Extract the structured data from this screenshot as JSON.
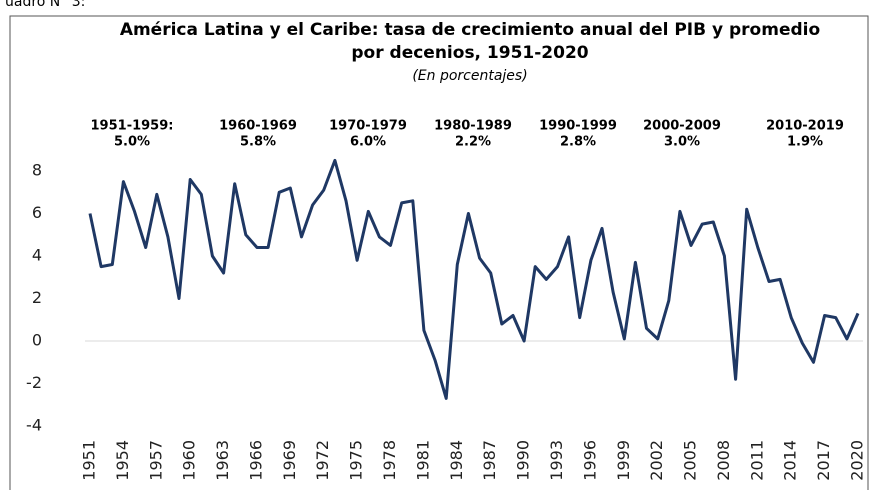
{
  "caption": "uadro N° 3:",
  "chart_data": {
    "type": "line",
    "title": [
      "América Latina y el Caribe: tasa de crecimiento anual del PIB y promedio",
      "por decenios, 1951-2020"
    ],
    "subtitle": "(En porcentajes)",
    "annotations": [
      {
        "period": "1951-1959:",
        "average": "5.0%"
      },
      {
        "period": "1960-1969",
        "average": "5.8%"
      },
      {
        "period": "1970-1979",
        "average": "6.0%"
      },
      {
        "period": "1980-1989",
        "average": "2.2%"
      },
      {
        "period": "1990-1999",
        "average": "2.8%"
      },
      {
        "period": "2000-2009",
        "average": "3.0%"
      },
      {
        "period": "2010-2019",
        "average": "1.9%"
      }
    ],
    "x": [
      1951,
      1952,
      1953,
      1954,
      1955,
      1956,
      1957,
      1958,
      1959,
      1960,
      1961,
      1962,
      1963,
      1964,
      1965,
      1966,
      1967,
      1968,
      1969,
      1970,
      1971,
      1972,
      1973,
      1974,
      1975,
      1976,
      1977,
      1978,
      1979,
      1980,
      1981,
      1982,
      1983,
      1984,
      1985,
      1986,
      1987,
      1988,
      1989,
      1990,
      1991,
      1992,
      1993,
      1994,
      1995,
      1996,
      1997,
      1998,
      1999,
      2000,
      2001,
      2002,
      2003,
      2004,
      2005,
      2006,
      2007,
      2008,
      2009,
      2010,
      2011,
      2012,
      2013,
      2014,
      2015,
      2016,
      2017,
      2018,
      2019,
      2020
    ],
    "values": [
      6.0,
      3.5,
      3.6,
      7.5,
      6.1,
      4.4,
      6.9,
      4.9,
      2.0,
      7.6,
      6.9,
      4.0,
      3.2,
      7.4,
      5.0,
      4.4,
      4.4,
      7.0,
      7.2,
      4.9,
      6.4,
      7.1,
      8.5,
      6.6,
      3.8,
      6.1,
      4.9,
      4.5,
      6.5,
      6.6,
      0.5,
      -0.9,
      -2.7,
      3.6,
      6.0,
      3.9,
      3.2,
      0.8,
      1.2,
      0.0,
      3.5,
      2.9,
      3.5,
      4.9,
      1.1,
      3.8,
      5.3,
      2.3,
      0.1,
      3.7,
      0.6,
      0.1,
      1.9,
      6.1,
      4.5,
      5.5,
      5.6,
      4.0,
      -1.8,
      6.2,
      4.4,
      2.8,
      2.9,
      1.1,
      -0.1,
      -1.0,
      1.2,
      1.1,
      0.1,
      1.3
    ],
    "color": "#1f3864",
    "xlim": [
      1951,
      2020
    ],
    "xticks": [
      1951,
      1954,
      1957,
      1960,
      1963,
      1966,
      1969,
      1972,
      1975,
      1978,
      1981,
      1984,
      1987,
      1990,
      1993,
      1996,
      1999,
      2002,
      2005,
      2008,
      2011,
      2014,
      2017,
      2020
    ],
    "ylim": [
      -4,
      8
    ],
    "yticks": [
      8,
      6,
      4,
      2,
      0,
      -2,
      -4
    ],
    "grid": false
  }
}
